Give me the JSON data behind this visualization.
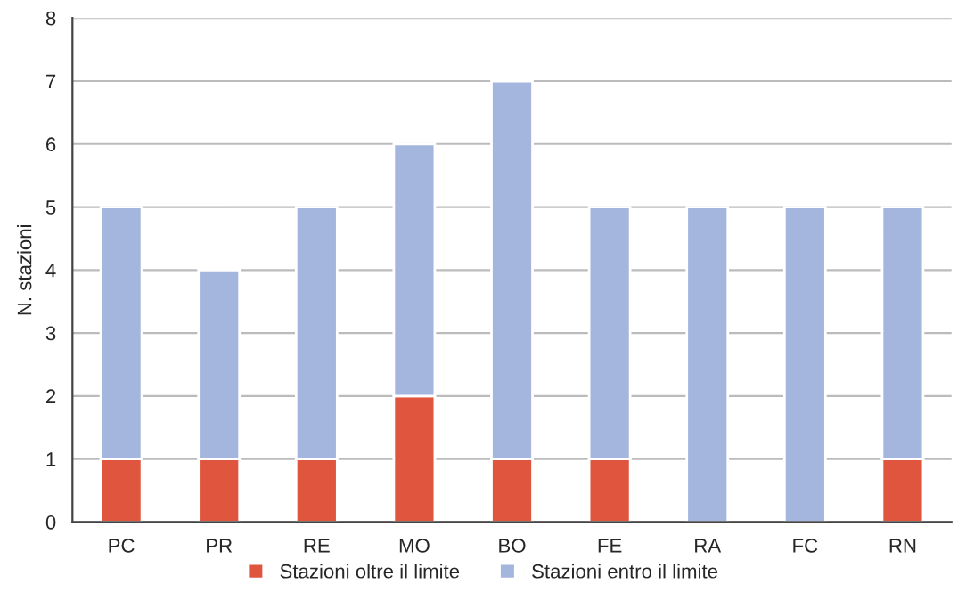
{
  "chart_data": {
    "type": "bar",
    "stacked": true,
    "ylabel": "N. stazioni",
    "categories": [
      "PC",
      "PR",
      "RE",
      "MO",
      "BO",
      "FE",
      "RA",
      "FC",
      "RN"
    ],
    "series": [
      {
        "name": "Stazioni oltre il limite",
        "color": "#e0553d",
        "values": [
          1,
          1,
          1,
          2,
          1,
          1,
          0,
          0,
          1
        ]
      },
      {
        "name": "Stazioni entro il limite",
        "color": "#a4b5de",
        "values": [
          4,
          3,
          4,
          4,
          6,
          4,
          5,
          5,
          4
        ]
      }
    ],
    "ylim": [
      0,
      8
    ],
    "yticks": [
      0,
      1,
      2,
      3,
      4,
      5,
      6,
      7,
      8
    ],
    "grid": "y",
    "legend": "bottom"
  }
}
